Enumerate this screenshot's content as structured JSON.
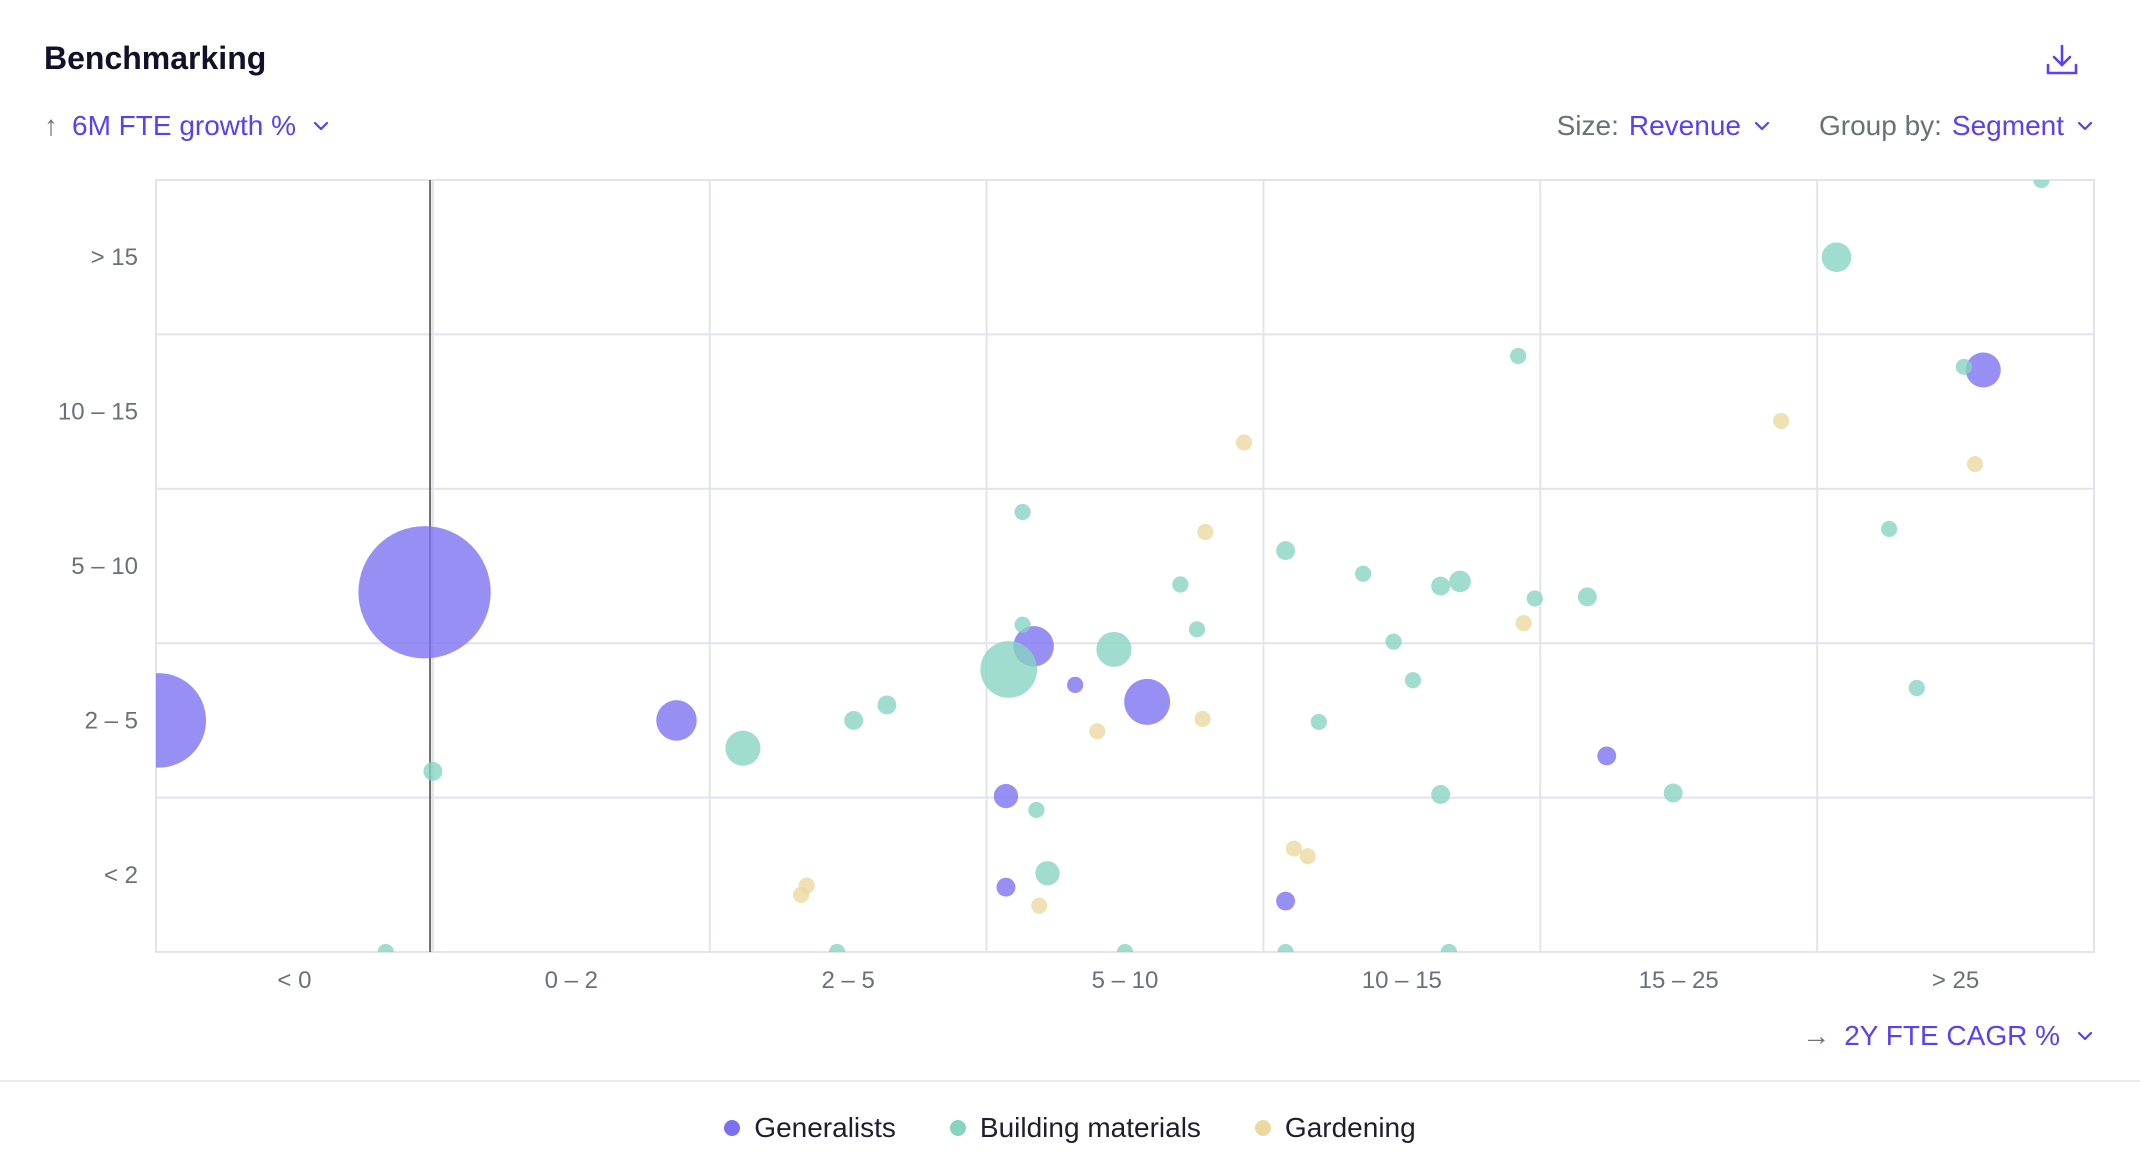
{
  "header": {
    "title": "Benchmarking",
    "download_icon": "download-icon"
  },
  "y_axis_selector": {
    "arrow": "↑",
    "label": "6M FTE growth %"
  },
  "size_control": {
    "prefix": "Size:",
    "value": "Revenue"
  },
  "group_control": {
    "prefix": "Group by:",
    "value": "Segment"
  },
  "x_axis_selector": {
    "arrow": "→",
    "label": "2Y FTE CAGR %"
  },
  "colors": {
    "accent": "#5b3ff5",
    "generalists": "#7b6ff2",
    "building": "#86d4c0",
    "gardening": "#ecd9a0",
    "grid": "#e1e4ec",
    "axis_text": "#6b6f7a"
  },
  "legend": [
    {
      "name": "Generalists",
      "color": "#7b6ff2"
    },
    {
      "name": "Building materials",
      "color": "#86d4c0"
    },
    {
      "name": "Gardening",
      "color": "#ecd9a0"
    }
  ],
  "chart_data": {
    "type": "scatter",
    "x_categories": [
      "< 0",
      "0 – 2",
      "2 – 5",
      "5 – 10",
      "10 – 15",
      "15 – 25",
      "> 25"
    ],
    "y_categories": [
      "< 2",
      "2 – 5",
      "5 – 10",
      "10 – 15",
      "> 15"
    ],
    "x_domain": [
      0,
      7
    ],
    "y_domain": [
      0,
      5
    ],
    "reference_line_x": 0.99,
    "grid": true,
    "legend_position": "bottom",
    "size_measure": "Revenue",
    "group_measure": "Segment",
    "series": [
      {
        "name": "Generalists",
        "points": [
          {
            "x": 0.01,
            "y": 1.5,
            "size": 35
          },
          {
            "x": 0.97,
            "y": 2.33,
            "size": 49
          },
          {
            "x": 1.88,
            "y": 1.5,
            "size": 15
          },
          {
            "x": 3.17,
            "y": 1.98,
            "size": 15
          },
          {
            "x": 3.32,
            "y": 1.73,
            "size": 6
          },
          {
            "x": 3.58,
            "y": 1.62,
            "size": 17
          },
          {
            "x": 3.07,
            "y": 1.01,
            "size": 9
          },
          {
            "x": 3.07,
            "y": 0.42,
            "size": 7
          },
          {
            "x": 4.08,
            "y": 0.33,
            "size": 7
          },
          {
            "x": 5.24,
            "y": 1.27,
            "size": 7
          },
          {
            "x": 6.6,
            "y": 3.77,
            "size": 13
          }
        ]
      },
      {
        "name": "Building materials",
        "points": [
          {
            "x": 0.83,
            "y": 0.0,
            "size": 6
          },
          {
            "x": 1.0,
            "y": 1.17,
            "size": 7
          },
          {
            "x": 2.12,
            "y": 1.32,
            "size": 13
          },
          {
            "x": 2.52,
            "y": 1.5,
            "size": 7
          },
          {
            "x": 2.64,
            "y": 1.6,
            "size": 7
          },
          {
            "x": 2.46,
            "y": 0.0,
            "size": 6
          },
          {
            "x": 3.08,
            "y": 1.83,
            "size": 21
          },
          {
            "x": 3.13,
            "y": 2.12,
            "size": 6
          },
          {
            "x": 3.13,
            "y": 2.85,
            "size": 6
          },
          {
            "x": 3.18,
            "y": 0.92,
            "size": 6
          },
          {
            "x": 3.22,
            "y": 0.51,
            "size": 9
          },
          {
            "x": 3.46,
            "y": 1.96,
            "size": 13
          },
          {
            "x": 3.5,
            "y": 0.0,
            "size": 6
          },
          {
            "x": 3.7,
            "y": 2.38,
            "size": 6
          },
          {
            "x": 3.76,
            "y": 2.09,
            "size": 6
          },
          {
            "x": 4.08,
            "y": 2.6,
            "size": 7
          },
          {
            "x": 4.08,
            "y": 0.0,
            "size": 6
          },
          {
            "x": 4.2,
            "y": 1.49,
            "size": 6
          },
          {
            "x": 4.36,
            "y": 2.45,
            "size": 6
          },
          {
            "x": 4.47,
            "y": 2.01,
            "size": 6
          },
          {
            "x": 4.54,
            "y": 1.76,
            "size": 6
          },
          {
            "x": 4.64,
            "y": 2.37,
            "size": 7
          },
          {
            "x": 4.71,
            "y": 2.4,
            "size": 8
          },
          {
            "x": 4.64,
            "y": 1.02,
            "size": 7
          },
          {
            "x": 4.67,
            "y": 0.0,
            "size": 6
          },
          {
            "x": 4.92,
            "y": 3.86,
            "size": 6
          },
          {
            "x": 4.98,
            "y": 2.29,
            "size": 6
          },
          {
            "x": 5.17,
            "y": 2.3,
            "size": 7
          },
          {
            "x": 5.48,
            "y": 1.03,
            "size": 7
          },
          {
            "x": 6.07,
            "y": 4.5,
            "size": 11
          },
          {
            "x": 6.26,
            "y": 2.74,
            "size": 6
          },
          {
            "x": 6.36,
            "y": 1.71,
            "size": 6
          },
          {
            "x": 6.53,
            "y": 3.79,
            "size": 6
          },
          {
            "x": 6.81,
            "y": 5.0,
            "size": 6
          }
        ]
      },
      {
        "name": "Gardening",
        "points": [
          {
            "x": 2.33,
            "y": 0.37,
            "size": 6
          },
          {
            "x": 2.35,
            "y": 0.43,
            "size": 6
          },
          {
            "x": 3.19,
            "y": 0.3,
            "size": 6
          },
          {
            "x": 3.4,
            "y": 1.43,
            "size": 6
          },
          {
            "x": 3.79,
            "y": 2.72,
            "size": 6
          },
          {
            "x": 3.78,
            "y": 1.51,
            "size": 6
          },
          {
            "x": 3.93,
            "y": 3.3,
            "size": 6
          },
          {
            "x": 4.11,
            "y": 0.67,
            "size": 6
          },
          {
            "x": 4.16,
            "y": 0.62,
            "size": 6
          },
          {
            "x": 4.94,
            "y": 2.13,
            "size": 6
          },
          {
            "x": 5.87,
            "y": 3.44,
            "size": 6
          },
          {
            "x": 6.57,
            "y": 3.16,
            "size": 6
          }
        ]
      }
    ]
  }
}
